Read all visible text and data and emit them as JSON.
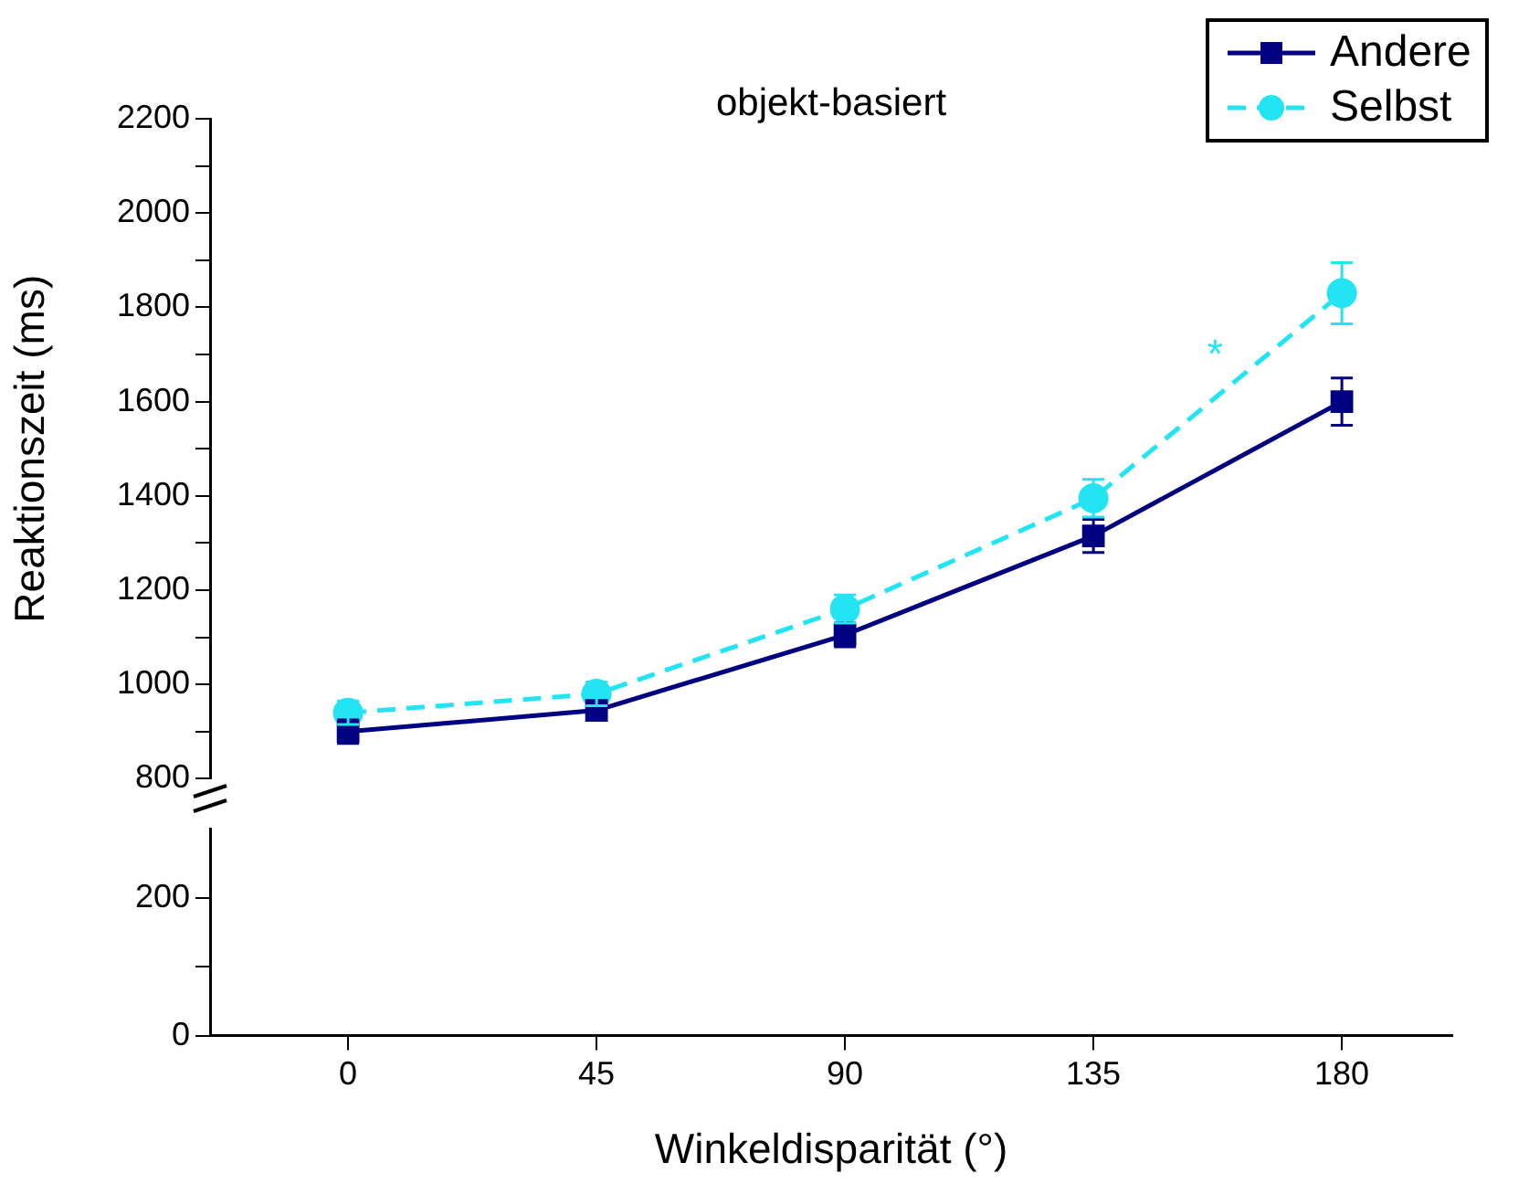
{
  "chart_data": [
    {
      "type": "line",
      "title": "objekt-basiert",
      "ylabel": "Reaktionszeit (ms)",
      "x": [
        0,
        45,
        90,
        135,
        180
      ],
      "ylim": [
        800,
        2200
      ],
      "yticks": [
        800,
        {
          "value": 900,
          "label": null
        },
        1000,
        {
          "value": 1100,
          "label": null
        },
        1200,
        {
          "value": 1300,
          "label": null
        },
        1400,
        {
          "value": 1500,
          "label": null
        },
        1600,
        {
          "value": 1700,
          "label": null
        },
        1800,
        {
          "value": 1900,
          "label": null
        },
        2000,
        {
          "value": 2100,
          "label": null
        },
        2200
      ],
      "tick_labels": "y",
      "legend": "top right",
      "grid": false,
      "series": [
        {
          "name": "Andere",
          "color": "#000080",
          "marker": "square",
          "line_style": "solid",
          "values": [
            900,
            945,
            1105,
            1315,
            1600
          ],
          "errors": [
            25,
            15,
            25,
            35,
            50
          ]
        },
        {
          "name": "Selbst",
          "color": "#22e4f2",
          "marker": "circle",
          "line_style": "dashed",
          "values": [
            940,
            980,
            1160,
            1395,
            1830
          ],
          "errors": [
            25,
            25,
            30,
            40,
            65
          ]
        }
      ],
      "annotations": [
        "*"
      ]
    },
    {
      "type": "line",
      "xlabel": "Winkeldisparität (°)",
      "xlim": [
        -25,
        200
      ],
      "xticks": [
        0,
        45,
        90,
        135,
        180
      ],
      "ylim": [
        0,
        300
      ],
      "yticks": [
        0,
        {
          "value": 100,
          "label": null
        },
        200
      ],
      "grid": false
    }
  ]
}
